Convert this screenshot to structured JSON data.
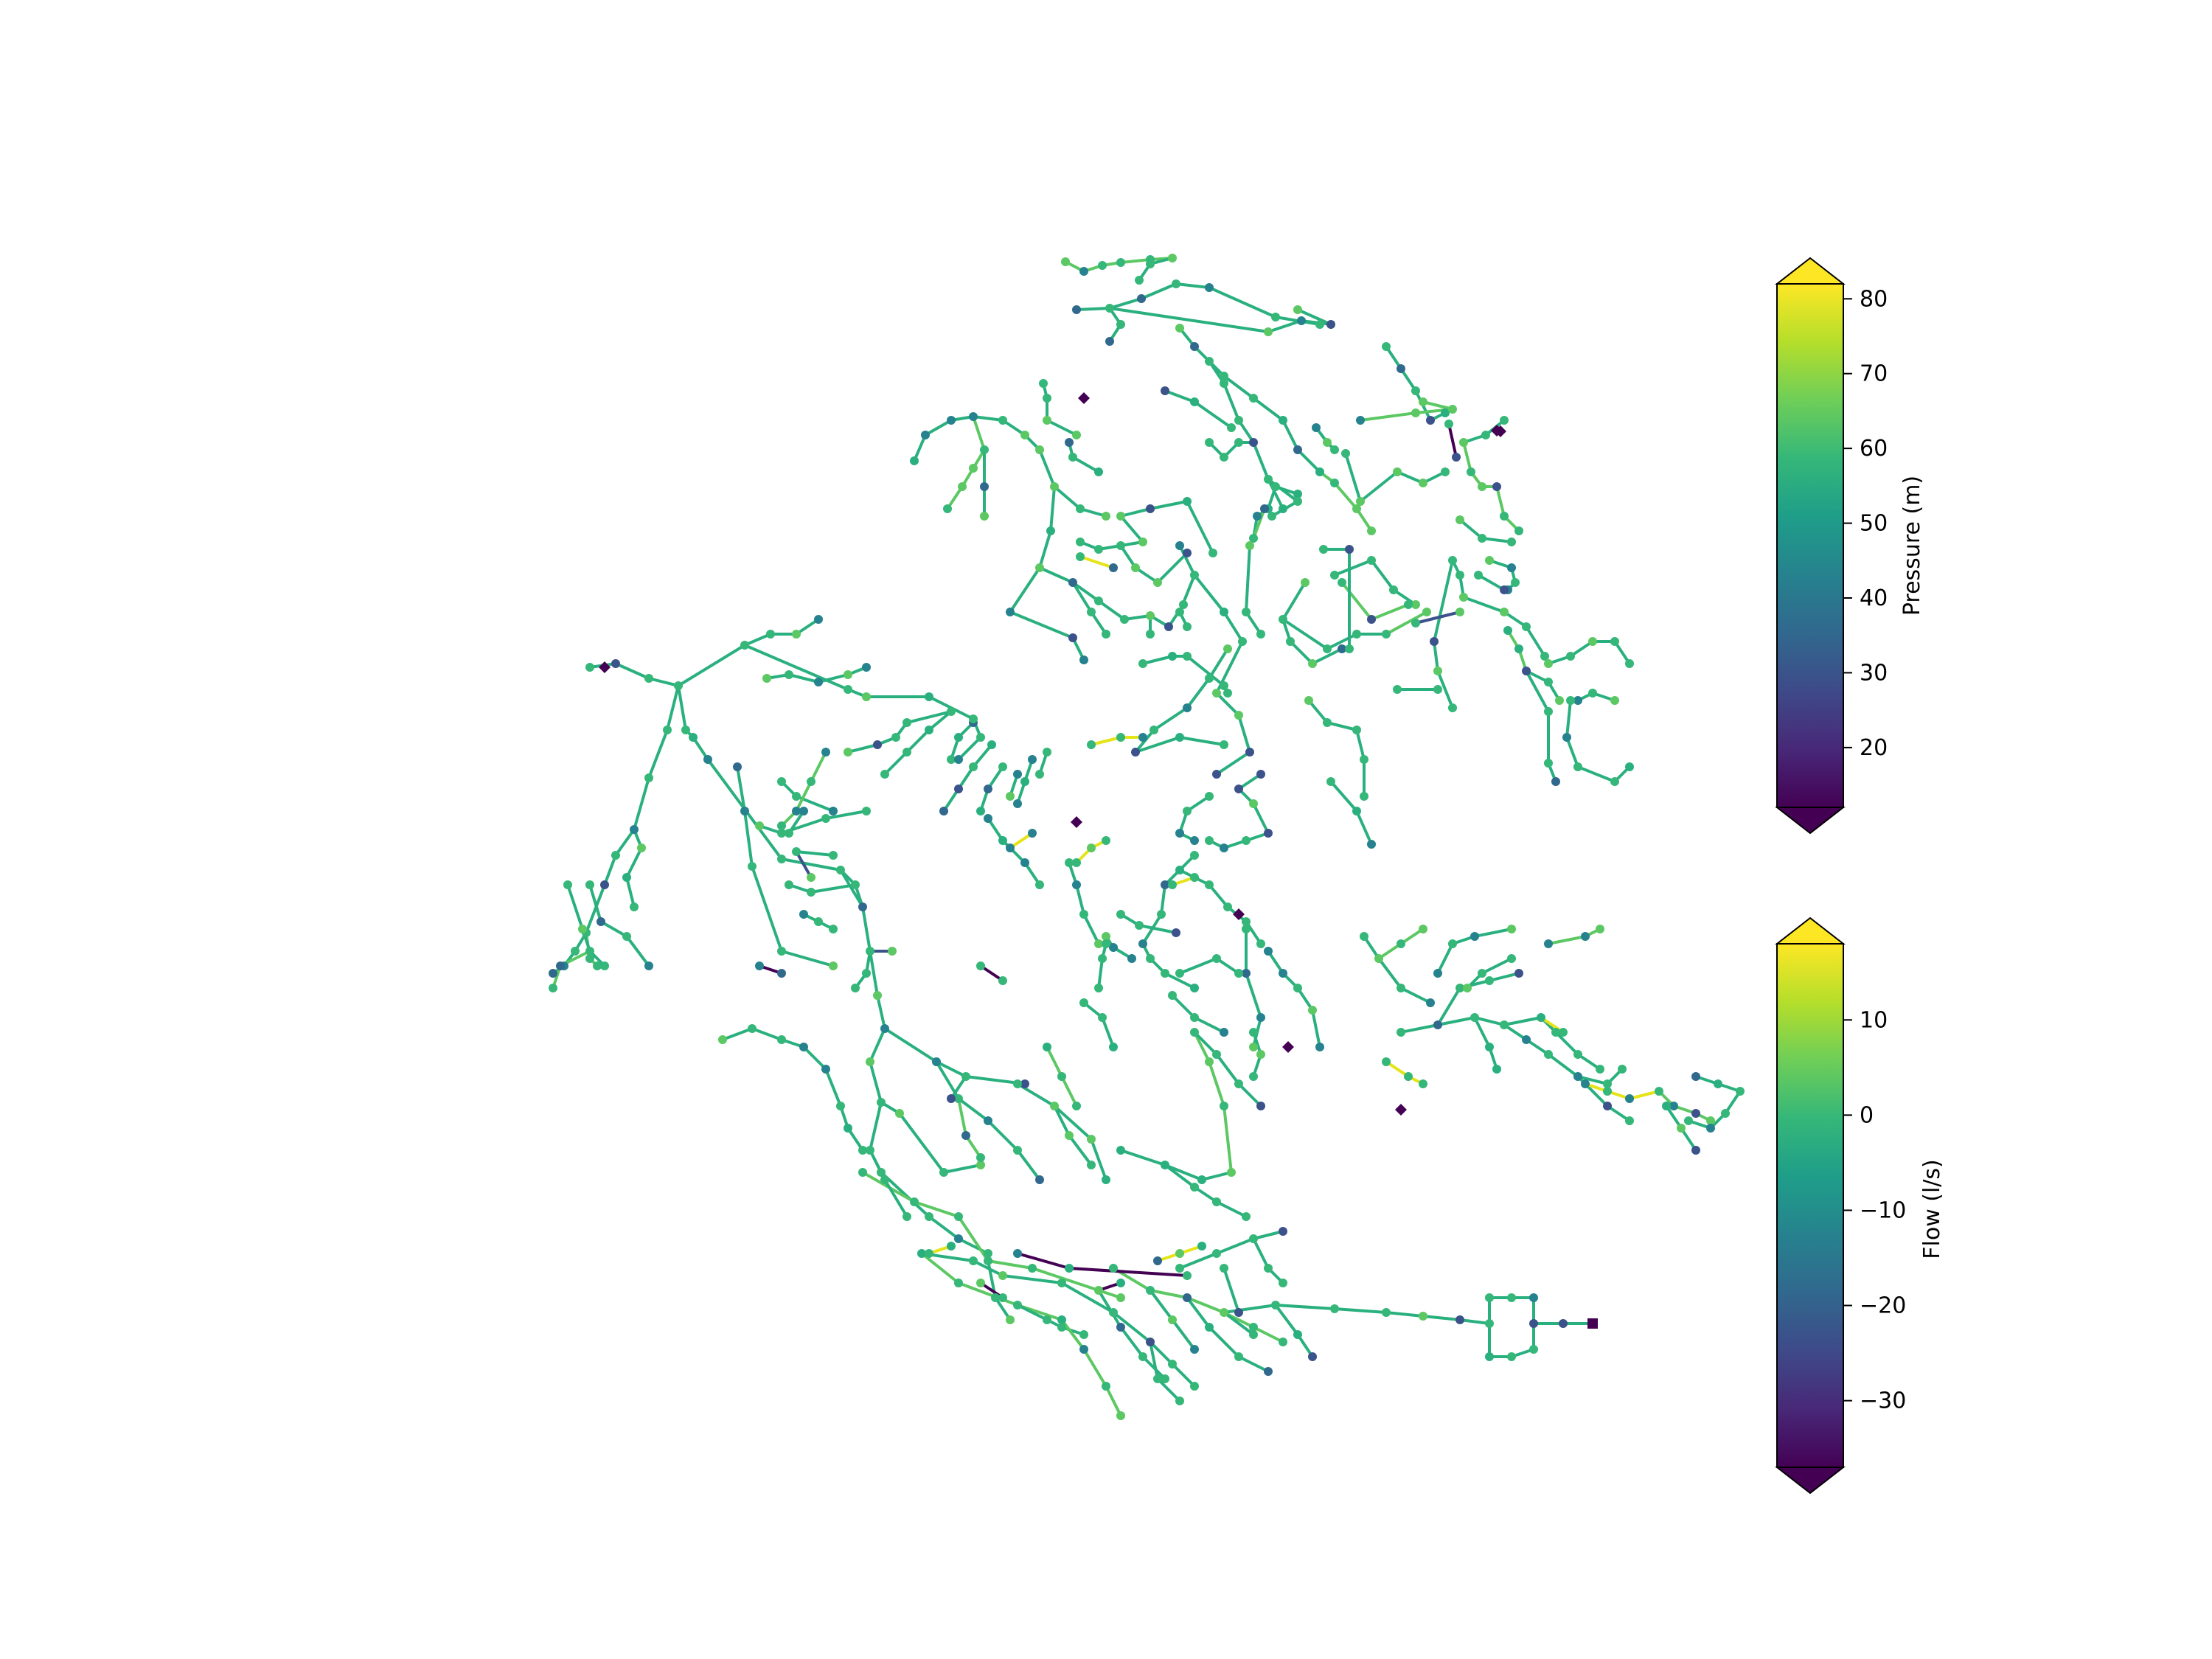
{
  "colorbars": [
    {
      "title": "Pressure (m)",
      "colormap": "viridis",
      "ticks": [
        {
          "value": 20,
          "label": "20"
        },
        {
          "value": 30,
          "label": "30"
        },
        {
          "value": 40,
          "label": "40"
        },
        {
          "value": 50,
          "label": "50"
        },
        {
          "value": 60,
          "label": "60"
        },
        {
          "value": 70,
          "label": "70"
        },
        {
          "value": 80,
          "label": "80"
        }
      ],
      "range": [
        12,
        82
      ],
      "extend": "both"
    },
    {
      "title": "Flow (l/s)",
      "colormap": "viridis",
      "ticks": [
        {
          "value": -30,
          "label": "−30"
        },
        {
          "value": -20,
          "label": "−20"
        },
        {
          "value": -10,
          "label": "−10"
        },
        {
          "value": 0,
          "label": "0"
        },
        {
          "value": 10,
          "label": "10"
        }
      ],
      "range": [
        -37,
        18
      ],
      "extend": "both"
    }
  ],
  "viridis": [
    "#440154",
    "#482878",
    "#3e4a89",
    "#31688e",
    "#26828e",
    "#1f9e89",
    "#35b779",
    "#6ece58",
    "#b5de2b",
    "#fde725"
  ]
}
